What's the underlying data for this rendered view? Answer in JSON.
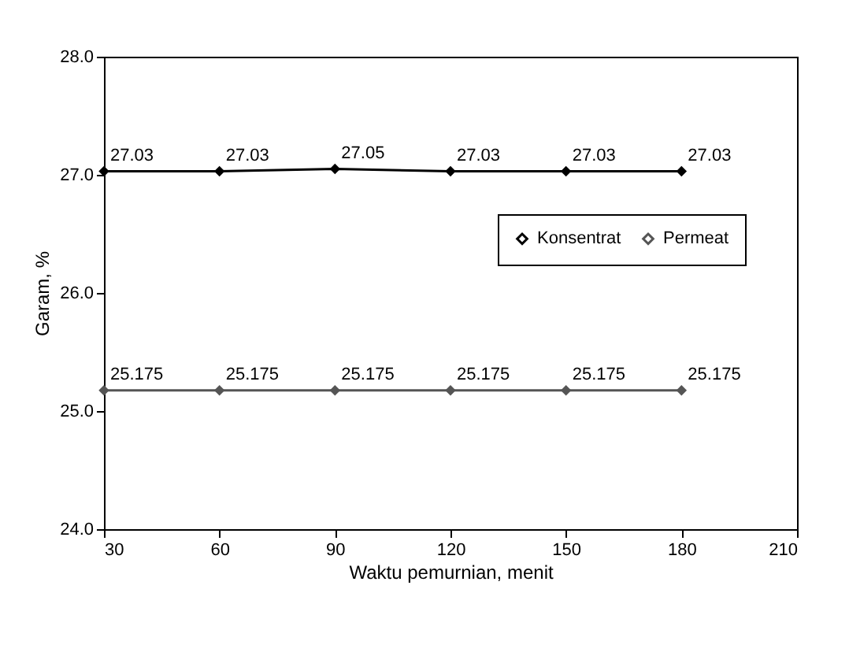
{
  "chart_data": {
    "type": "line",
    "xlabel": "Waktu pemurnian, menit",
    "ylabel": "Garam, %",
    "x": [
      30,
      60,
      90,
      120,
      150,
      180
    ],
    "series": [
      {
        "name": "Konsentrat",
        "color": "#000000",
        "marker": "diamond",
        "values": [
          27.03,
          27.03,
          27.05,
          27.03,
          27.03,
          27.03
        ],
        "value_labels": [
          "27.03",
          "27.03",
          "27.05",
          "27.03",
          "27.03",
          "27.03"
        ]
      },
      {
        "name": "Permeat",
        "color": "#555555",
        "marker": "diamond",
        "values": [
          25.175,
          25.175,
          25.175,
          25.175,
          25.175,
          25.175
        ],
        "value_labels": [
          "25.175",
          "25.175",
          "25.175",
          "25.175",
          "25.175",
          "25.175"
        ]
      }
    ],
    "xlim": [
      30,
      210
    ],
    "xticks": [
      30,
      60,
      90,
      120,
      150,
      180,
      210
    ],
    "ylim": [
      24,
      28
    ],
    "yticks": [
      {
        "value": 24,
        "label": "24.0"
      },
      {
        "value": 25,
        "label": "25.0"
      },
      {
        "value": 26,
        "label": "26.0"
      },
      {
        "value": 27,
        "label": "27.0"
      },
      {
        "value": 28,
        "label": "28.0"
      }
    ],
    "grid": false,
    "legend": "right",
    "line_style": "solid"
  }
}
